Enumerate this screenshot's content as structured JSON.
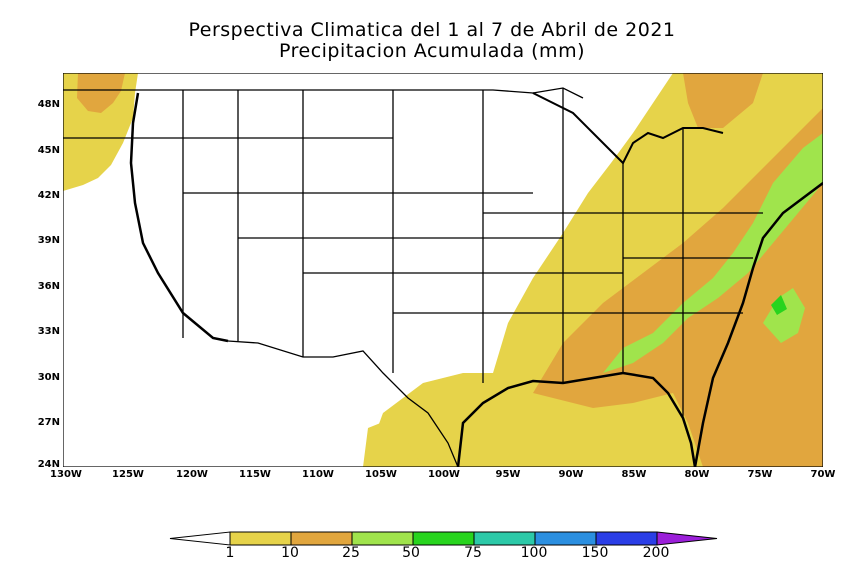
{
  "title": {
    "line1": "Perspectiva Climatica del 1 al 7 de Abril de 2021",
    "line2": "Precipitacion Acumulada (mm)"
  },
  "axes": {
    "lat_labels": [
      "48N",
      "45N",
      "42N",
      "39N",
      "36N",
      "33N",
      "30N",
      "27N",
      "24N"
    ],
    "lon_labels": [
      "130W",
      "125W",
      "120W",
      "115W",
      "110W",
      "105W",
      "100W",
      "95W",
      "90W",
      "85W",
      "80W",
      "75W",
      "70W"
    ],
    "lat_range": [
      24,
      50
    ],
    "lon_range": [
      -130,
      -70
    ]
  },
  "colorbar": {
    "labels": [
      "1",
      "10",
      "25",
      "50",
      "75",
      "100",
      "150",
      "200"
    ],
    "colors": {
      "below_1": "#ffffff",
      "1_10": "#e6d34a",
      "10_25": "#e1a63e",
      "25_50": "#a0e44c",
      "50_75": "#28d41e",
      "75_100": "#2cc9a8",
      "100_150": "#2b8fe0",
      "150_200": "#2a3ee6",
      "above_200": "#9b1fd9"
    }
  },
  "colors": {
    "land_dry": "#ffffff",
    "borders": "#000000"
  }
}
